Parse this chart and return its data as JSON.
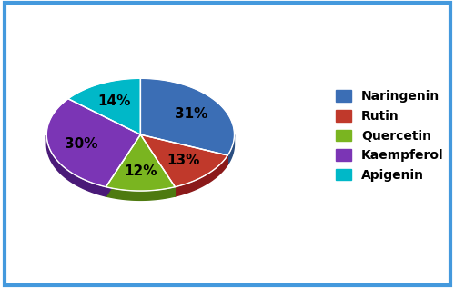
{
  "labels": [
    "Naringenin",
    "Rutin",
    "Quercetin",
    "Kaempferol",
    "Apigenin"
  ],
  "values": [
    31,
    13,
    12,
    30,
    14
  ],
  "colors": [
    "#3b6eb5",
    "#c0392b",
    "#7ab520",
    "#7b35b5",
    "#00b8c8"
  ],
  "dark_colors": [
    "#2a4e80",
    "#8b1a1a",
    "#4e7a10",
    "#4a1a78",
    "#007888"
  ],
  "startangle": 90,
  "legend_labels": [
    "Naringenin",
    "Rutin",
    "Quercetin",
    "Kaempferol",
    "Apigenin"
  ],
  "border_color": "#4499dd",
  "border_linewidth": 3,
  "depth": 0.12,
  "pct_fontsize": 11,
  "legend_fontsize": 10
}
